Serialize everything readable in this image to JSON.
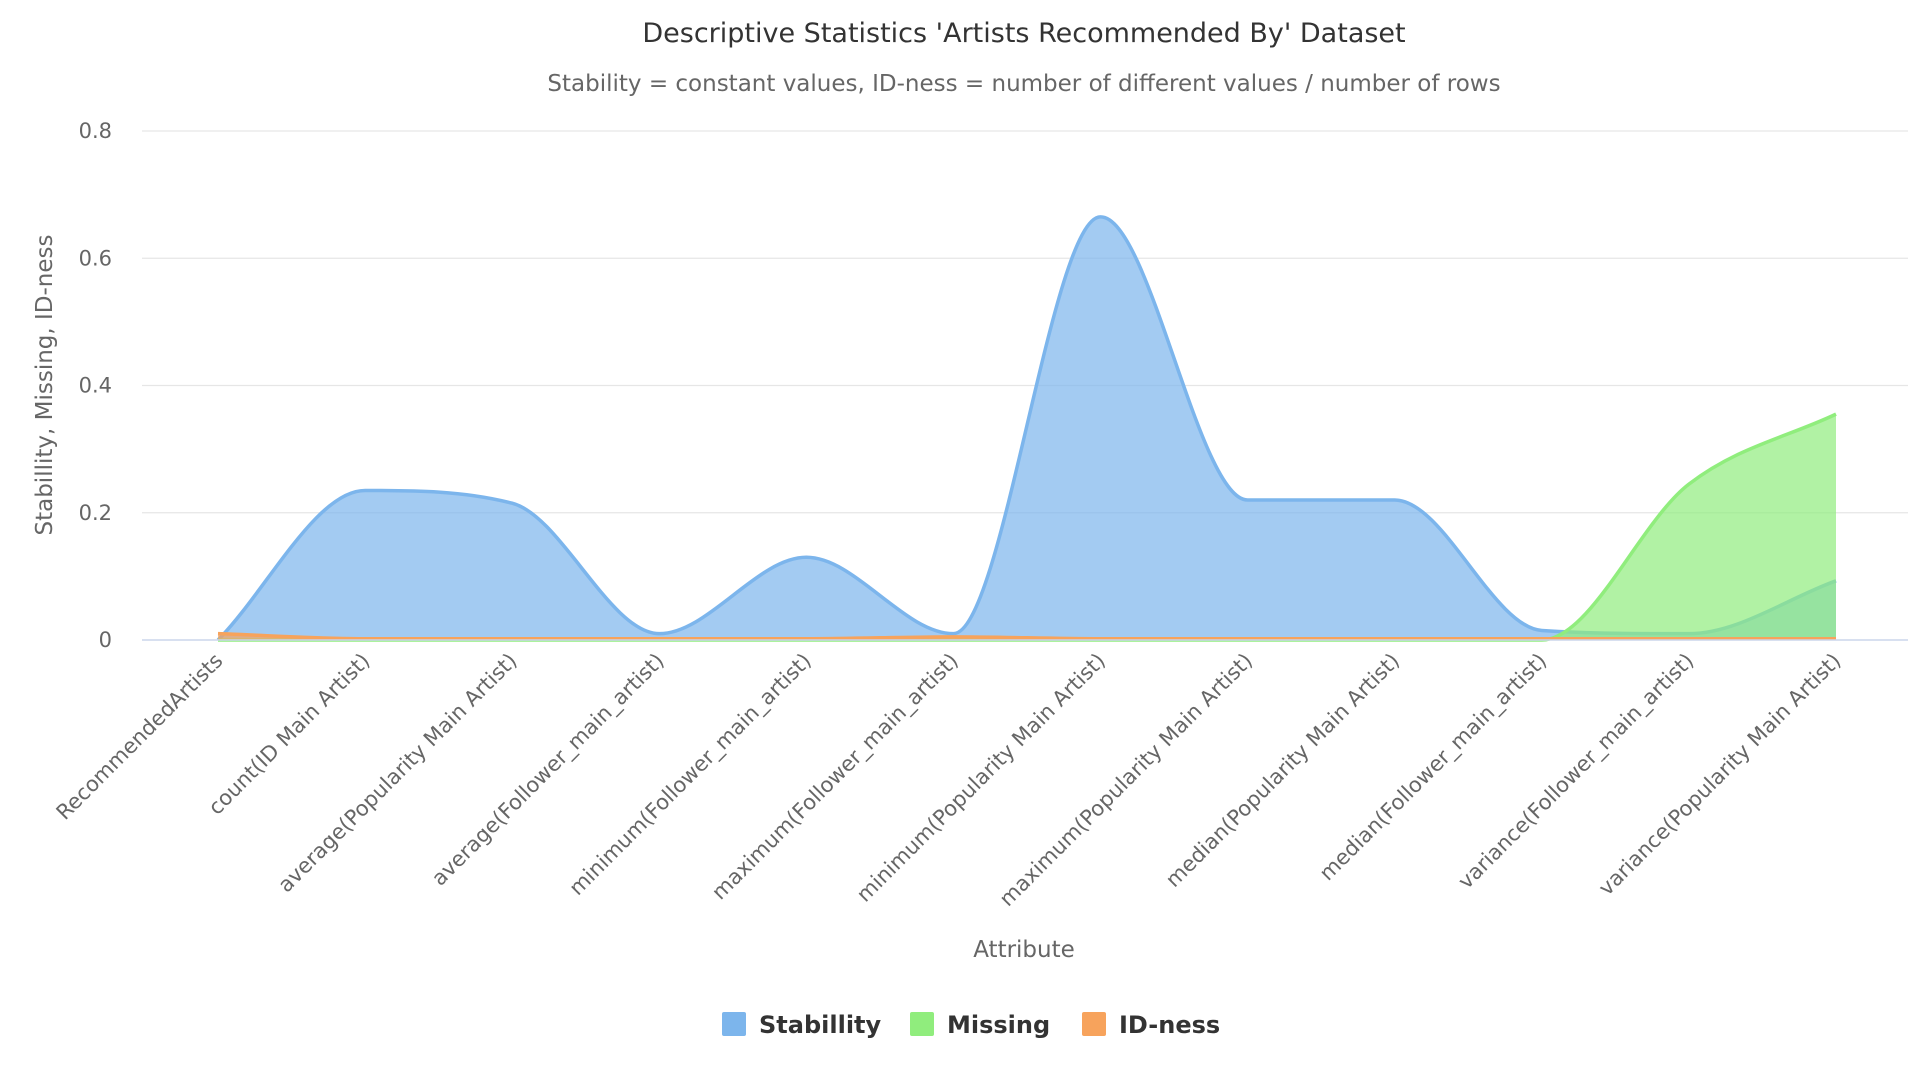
{
  "chart_data": {
    "type": "area",
    "title": "Descriptive Statistics 'Artists Recommended By' Dataset",
    "subtitle": "Stability = constant values, ID-ness = number of different values / number of rows",
    "xlabel": "Attribute",
    "ylabel": "Stabillity, Missing, ID-ness",
    "ylim": [
      0,
      0.8
    ],
    "yticks": [
      0,
      0.2,
      0.4,
      0.6,
      0.8
    ],
    "ytick_labels": [
      "0",
      "0.2",
      "0.4",
      "0.6",
      "0.8"
    ],
    "grid": true,
    "legend_position": "bottom-center",
    "categories": [
      "RecommendedArtists",
      "count(ID Main Artist)",
      "average(Popularity Main Artist)",
      "average(Follower_main_artist)",
      "minimum(Follower_main_artist)",
      "maximum(Follower_main_artist)",
      "minimum(Popularity Main Artist)",
      "maximum(Popularity Main Artist)",
      "median(Popularity Main Artist)",
      "median(Follower_main_artist)",
      "variance(Follower_main_artist)",
      "variance(Popularity Main Artist)"
    ],
    "series": [
      {
        "name": "Stabillity",
        "color": "#7cb5ec",
        "values": [
          0.0,
          0.235,
          0.215,
          0.01,
          0.13,
          0.01,
          0.665,
          0.22,
          0.22,
          0.015,
          0.01,
          0.093
        ]
      },
      {
        "name": "Missing",
        "color": "#90ed7d",
        "values": [
          0.0,
          0.0,
          0.0,
          0.0,
          0.0,
          0.0,
          0.0,
          0.0,
          0.0,
          0.0,
          0.245,
          0.355
        ]
      },
      {
        "name": "ID-ness",
        "color": "#f7a35c",
        "values": [
          0.01,
          0.002,
          0.002,
          0.002,
          0.002,
          0.005,
          0.002,
          0.002,
          0.002,
          0.002,
          0.002,
          0.002
        ]
      }
    ]
  }
}
